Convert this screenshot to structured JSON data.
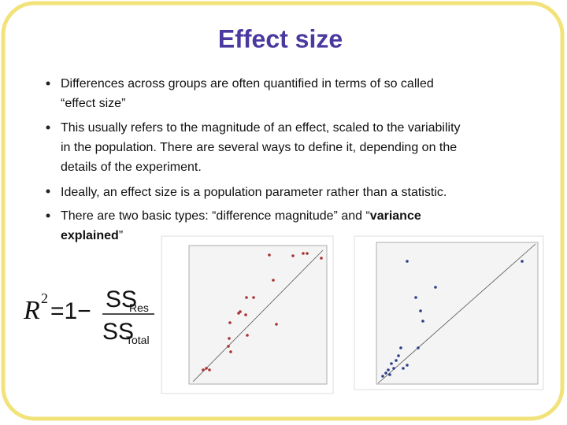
{
  "header": {
    "title": "Effect size"
  },
  "bullets": [
    {
      "parts": [
        {
          "text": "Differences across groups are often quantified in terms of so called"
        },
        {
          "text": "“effect size”"
        }
      ]
    },
    {
      "parts": [
        {
          "text": "This usually refers to the magnitude of an effect, scaled to the variability"
        },
        {
          "text": "in the population. There are several ways to define it, depending on the"
        },
        {
          "text": "details of the experiment."
        }
      ]
    },
    {
      "parts": [
        {
          "text": "Ideally, an effect size is a population parameter rather than a statistic."
        }
      ]
    },
    {
      "parts": [
        {
          "text": "There are two basic types: “difference magnitude” and “"
        },
        {
          "text": "variance"
        },
        {
          "text": "explained"
        },
        {
          "text": "”"
        }
      ]
    }
  ],
  "formula": {
    "lhs": "R",
    "exp": "2",
    "eq": "=1−",
    "num": "SS",
    "num_sub": "Res",
    "den": "SS",
    "den_sub": "Total"
  }
}
